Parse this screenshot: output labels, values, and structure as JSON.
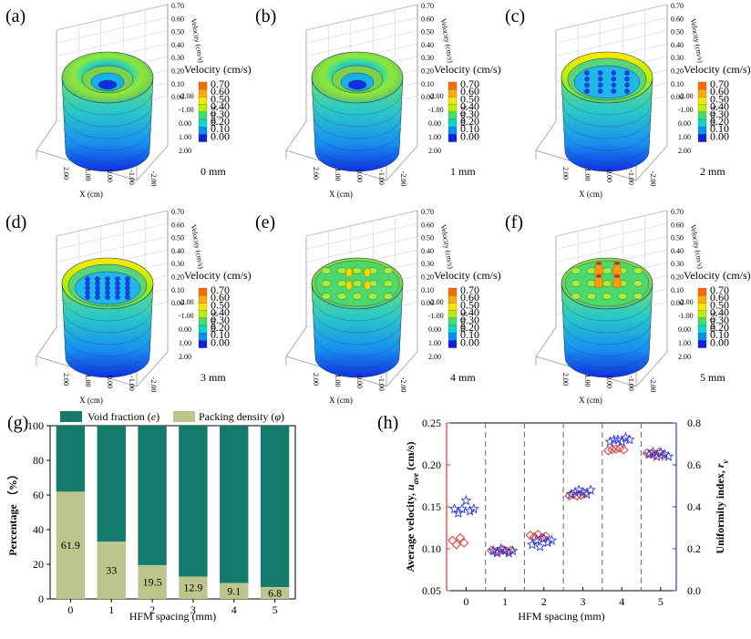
{
  "colors": {
    "void": "#137a6c",
    "packing": "#bdc58c",
    "packing_light": "#e3e8bd",
    "avg_velocity": "#e8332c",
    "uniformity": "#2a3bd8",
    "dash": "#666666"
  },
  "surface_panels": [
    {
      "label": "(a)",
      "spacing": "0 mm",
      "mode": "hollow"
    },
    {
      "label": "(b)",
      "spacing": "1 mm",
      "mode": "hollow"
    },
    {
      "label": "(c)",
      "spacing": "2 mm",
      "mode": "rimdots"
    },
    {
      "label": "(d)",
      "spacing": "3 mm",
      "mode": "rimdots2"
    },
    {
      "label": "(e)",
      "spacing": "4 mm",
      "mode": "bumps"
    },
    {
      "label": "(f)",
      "spacing": "5 mm",
      "mode": "peaks"
    }
  ],
  "surface_axes": {
    "z_label": "Velocity (cm/s)",
    "z_ticks": [
      "0.70",
      "0.60",
      "0.50",
      "0.40",
      "0.30",
      "0.20",
      "0.10",
      "0.00"
    ],
    "y_label": "Y (cm)",
    "y_ticks": [
      "-2.00",
      "-1.00",
      "0.00",
      "1.00",
      "2.00"
    ],
    "x_label": "X (cm)",
    "x_ticks": [
      "2.00",
      "1.00",
      "0.00",
      "-1.00",
      "-2.00"
    ]
  },
  "colorbar": {
    "title": "Velocity (cm/s)",
    "levels": [
      "0.70",
      "0.60",
      "0.50",
      "0.40",
      "0.30",
      "0.20",
      "0.10",
      "0.00"
    ],
    "colors": [
      "#ff6a00",
      "#ffae00",
      "#ffe600",
      "#b8f000",
      "#3fe06a",
      "#00d8d0",
      "#0090ff",
      "#1020e0"
    ]
  },
  "chart_data": [
    {
      "id": "g",
      "panel_label": "(g)",
      "type": "bar",
      "stacked": true,
      "categories": [
        "0",
        "1",
        "2",
        "3",
        "4",
        "5"
      ],
      "series": [
        {
          "name": "Packing density",
          "symbol": "φ",
          "values": [
            61.9,
            33,
            19.5,
            12.9,
            9.1,
            6.8
          ]
        },
        {
          "name": "Void fraction",
          "symbol": "e",
          "values": [
            38.1,
            67,
            80.5,
            87.1,
            90.9,
            93.2
          ]
        }
      ],
      "data_labels": [
        "61.9",
        "33",
        "19.5",
        "12.9",
        "9.1",
        "6.8"
      ],
      "legend": [
        {
          "text": "Void fraction (",
          "symbol": "e",
          "close": ")"
        },
        {
          "text": "Packing density (",
          "symbol": "φ",
          "close": ")"
        }
      ],
      "xlabel": "HFM spacing (mm)",
      "ylabel": "Percentage （%）",
      "yticks": [
        "0",
        "20",
        "40",
        "60",
        "80",
        "100"
      ],
      "ylim": [
        0,
        100
      ]
    },
    {
      "id": "h",
      "panel_label": "(h)",
      "type": "scatter",
      "xlabel": "HFM spacing (mm)",
      "xticks": [
        "0",
        "1",
        "2",
        "3",
        "4",
        "5"
      ],
      "ylabel_left": "Average velocity, ",
      "ylabel_left_sym": "u",
      "ylabel_left_sub": "ave",
      "ylabel_left_unit": " (cm/s)",
      "ylabel_right": "Uniformity index, ",
      "ylabel_right_sym": "r",
      "ylabel_right_sub": "v",
      "ylim_left": [
        0.05,
        0.25
      ],
      "ylim_right": [
        0.0,
        0.8
      ],
      "yticks_left": [
        "0.05",
        "0.10",
        "0.15",
        "0.20",
        "0.25"
      ],
      "yticks_right": [
        "0.0",
        "0.2",
        "0.4",
        "0.6",
        "0.8"
      ],
      "dividers": [
        0.5,
        1.5,
        2.5,
        3.5,
        4.5
      ],
      "series": [
        {
          "name": "Average velocity",
          "marker": "diamond",
          "axis": "left",
          "x": [
            -0.35,
            -0.25,
            -0.15,
            -0.05,
            0.65,
            0.75,
            0.85,
            0.95,
            1.05,
            1.15,
            1.65,
            1.75,
            1.85,
            1.95,
            2.05,
            2.65,
            2.75,
            2.85,
            2.95,
            3.05,
            3.65,
            3.75,
            3.85,
            3.95,
            4.05,
            4.65,
            4.75,
            4.85,
            4.95,
            5.05
          ],
          "y": [
            0.11,
            0.105,
            0.113,
            0.107,
            0.098,
            0.096,
            0.097,
            0.099,
            0.097,
            0.098,
            0.116,
            0.114,
            0.117,
            0.113,
            0.115,
            0.163,
            0.165,
            0.163,
            0.164,
            0.166,
            0.217,
            0.218,
            0.219,
            0.22,
            0.218,
            0.214,
            0.213,
            0.212,
            0.215,
            0.211
          ]
        },
        {
          "name": "Uniformity index",
          "marker": "star",
          "axis": "right",
          "x": [
            -0.3,
            -0.2,
            -0.1,
            0.0,
            0.1,
            0.2,
            0.7,
            0.8,
            0.9,
            1.0,
            1.1,
            1.2,
            1.7,
            1.8,
            1.9,
            2.0,
            2.1,
            2.2,
            2.7,
            2.8,
            2.9,
            3.0,
            3.1,
            3.2,
            3.7,
            3.8,
            3.9,
            4.0,
            4.1,
            4.2,
            4.7,
            4.8,
            4.9,
            5.0,
            5.1,
            5.2
          ],
          "y": [
            0.39,
            0.37,
            0.39,
            0.43,
            0.38,
            0.39,
            0.19,
            0.18,
            0.2,
            0.19,
            0.18,
            0.19,
            0.22,
            0.24,
            0.21,
            0.25,
            0.23,
            0.24,
            0.46,
            0.47,
            0.48,
            0.47,
            0.46,
            0.48,
            0.71,
            0.72,
            0.72,
            0.71,
            0.73,
            0.72,
            0.65,
            0.66,
            0.64,
            0.66,
            0.65,
            0.64
          ]
        }
      ]
    }
  ]
}
